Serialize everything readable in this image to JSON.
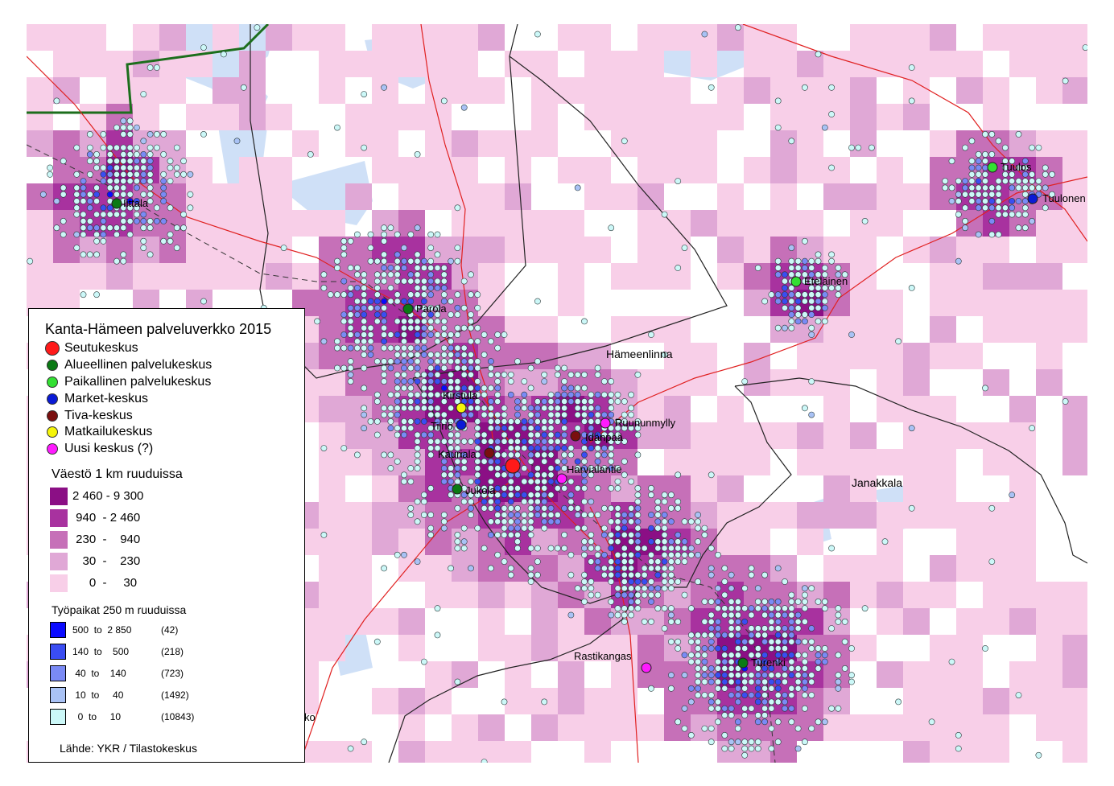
{
  "map": {
    "region_label": "Hämeenlinna",
    "region_label_2": "Janakkala",
    "places": [
      {
        "name": "Iittala",
        "type": "alueellinen"
      },
      {
        "name": "Parola",
        "type": "alueellinen"
      },
      {
        "name": "Kirstula",
        "type": "matkailu"
      },
      {
        "name": "Tiiriö",
        "type": "market"
      },
      {
        "name": "Kauriala",
        "type": "tiva"
      },
      {
        "name": "Jukola",
        "type": "alueellinen"
      },
      {
        "name": "Idänpää",
        "type": "tiva"
      },
      {
        "name": "Ruununmylly",
        "type": "uusi"
      },
      {
        "name": "Harvialantie",
        "type": "uusi"
      },
      {
        "name": "Tuulos",
        "type": "paikallinen"
      },
      {
        "name": "Tuulonen",
        "type": "market"
      },
      {
        "name": "Eteläinen",
        "type": "paikallinen"
      },
      {
        "name": "Rastikangas",
        "type": "uusi"
      },
      {
        "name": "Turenki",
        "type": "alueellinen"
      },
      {
        "name": "ko",
        "type": "none"
      }
    ],
    "center_type": "seutukeskus"
  },
  "legend": {
    "title": "Kanta-Hämeen palveluverkko 2015",
    "centers": [
      {
        "label": "Seutukeskus",
        "color": "#ff1a1a"
      },
      {
        "label": "Alueellinen palvelukeskus",
        "color": "#0b7a14"
      },
      {
        "label": "Paikallinen palvelukeskus",
        "color": "#33e033"
      },
      {
        "label": "Market-keskus",
        "color": "#0a1ad6"
      },
      {
        "label": "Tiva-keskus",
        "color": "#7a0f0f"
      },
      {
        "label": "Matkailukeskus",
        "color": "#f5f50a"
      },
      {
        "label": "Uusi keskus (?)",
        "color": "#ff1aff"
      }
    ],
    "population_title": "Väestö 1 km ruuduissa",
    "population_classes": [
      {
        "label": "2 460 - 9 300",
        "color": "#8b0f85"
      },
      {
        "label": " 940  - 2 460",
        "color": "#a8329f"
      },
      {
        "label": " 230  -    940",
        "color": "#c670b8"
      },
      {
        "label": "   30  -    230",
        "color": "#e0a8d6"
      },
      {
        "label": "     0  -     30",
        "color": "#f8cfe8"
      }
    ],
    "jobs_title": "Työpaikat 250 m ruuduissa",
    "job_classes": [
      {
        "range": "500  to  2 850",
        "count": "(42)",
        "color": "#0a0aff"
      },
      {
        "range": "140  to    500",
        "count": "(218)",
        "color": "#3a4df2"
      },
      {
        "range": " 40  to    140",
        "count": "(723)",
        "color": "#7a8af5"
      },
      {
        "range": " 10  to     40",
        "count": "(1492)",
        "color": "#a9c2f5"
      },
      {
        "range": "  0  to     10",
        "count": "(10843)",
        "color": "#ccf8f8"
      }
    ],
    "source": "Lähde: YKR / Tilastokeskus"
  }
}
